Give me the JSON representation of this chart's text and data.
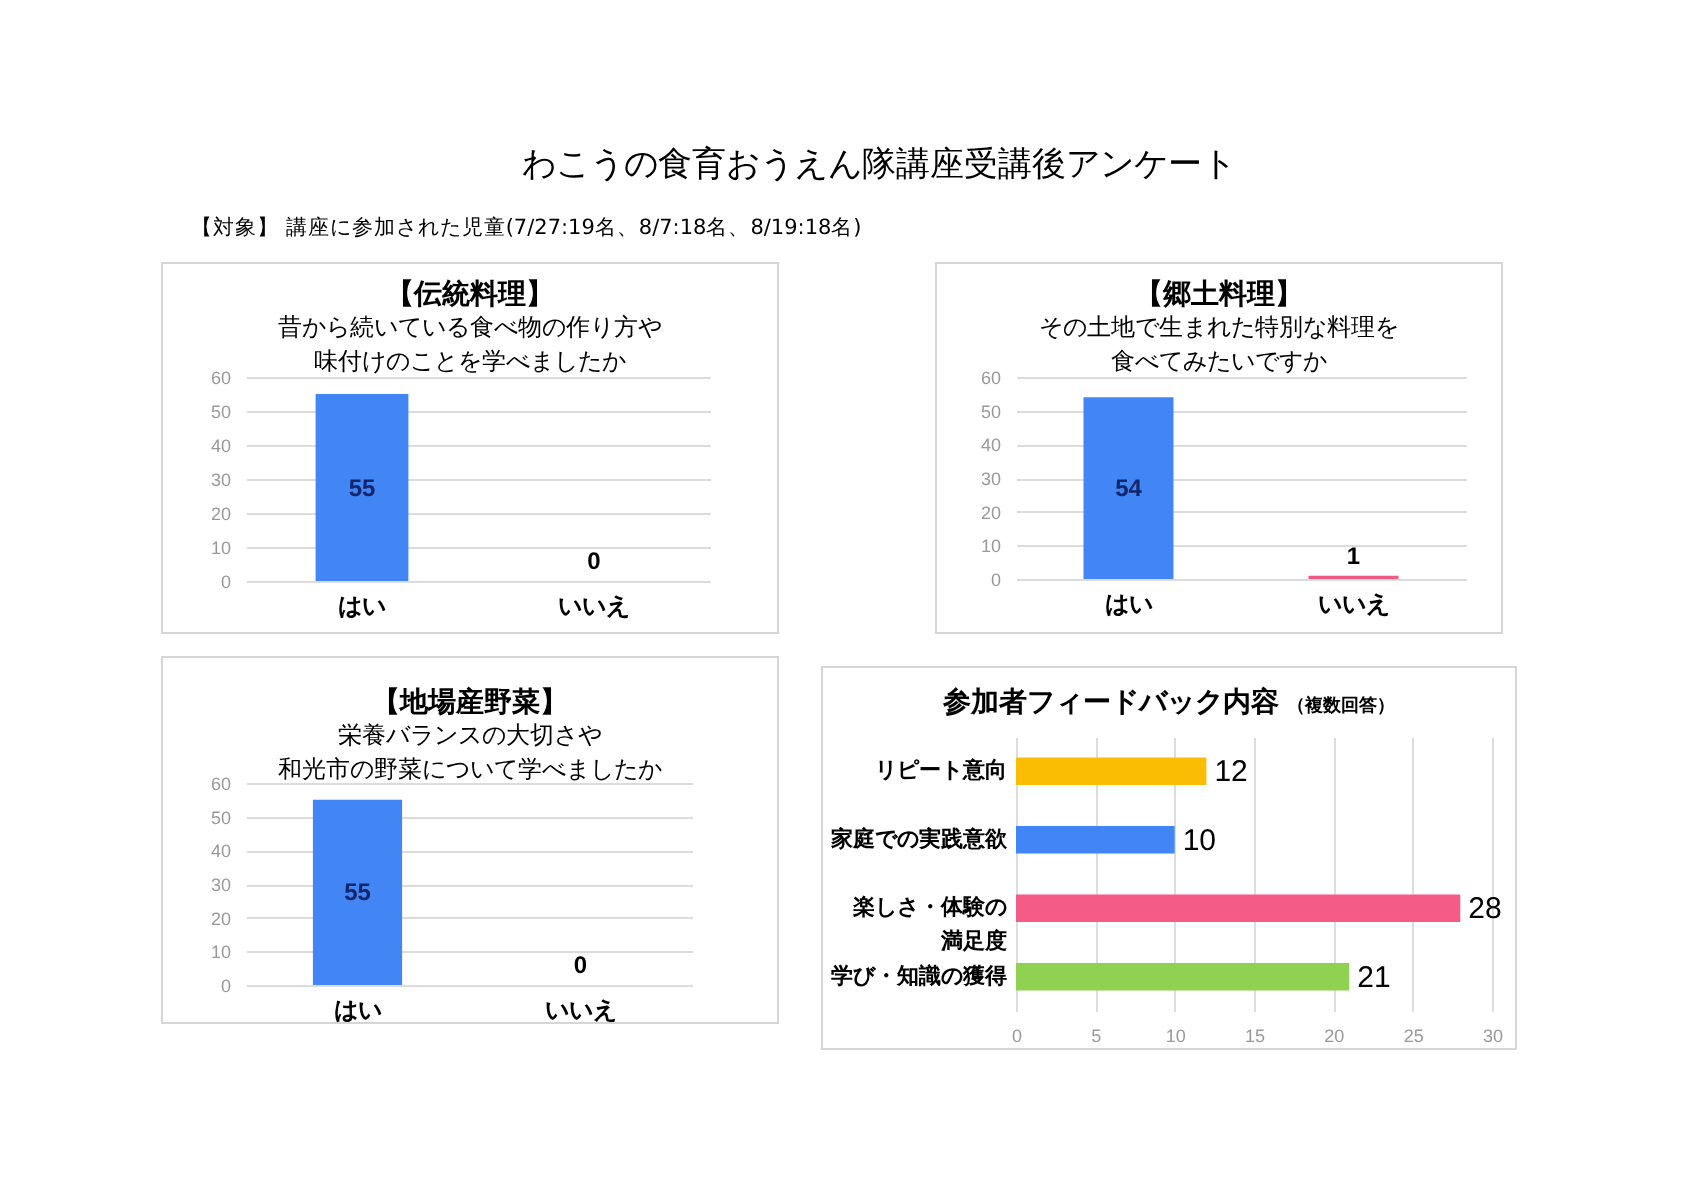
{
  "chart_data": [
    {
      "type": "other",
      "title": "わこうの食育おうえん隊講座受講後アンケート",
      "subtitle": "【対象】 講座に参加された児童(7/27:19名、8/7:18名、8/19:18名)"
    },
    {
      "type": "bar",
      "title": "【伝統料理】",
      "subtitle": "昔から続いている食べ物の作り方や味付けのことを学べましたか",
      "categories": [
        "はい",
        "いいえ"
      ],
      "values": [
        55,
        0
      ],
      "colors": [
        "#4285f4",
        "#ef5a84"
      ],
      "ylim": [
        0,
        60
      ],
      "yticks": [
        0,
        10,
        20,
        30,
        40,
        50,
        60
      ],
      "grid": "y",
      "data_labels": true
    },
    {
      "type": "bar",
      "title": "【郷土料理】",
      "subtitle": "その土地で生まれた特別な料理を食べてみたいですか",
      "categories": [
        "はい",
        "いいえ"
      ],
      "values": [
        54,
        1
      ],
      "colors": [
        "#4285f4",
        "#ef5a84"
      ],
      "ylim": [
        0,
        60
      ],
      "yticks": [
        0,
        10,
        20,
        30,
        40,
        50,
        60
      ],
      "grid": "y",
      "data_labels": true
    },
    {
      "type": "bar",
      "title": "【地場産野菜】",
      "subtitle": "栄養バランスの大切さや和光市の野菜について学べましたか",
      "categories": [
        "はい",
        "いいえ"
      ],
      "values": [
        55,
        0
      ],
      "colors": [
        "#4285f4",
        "#ef5a84"
      ],
      "ylim": [
        0,
        60
      ],
      "yticks": [
        0,
        10,
        20,
        30,
        40,
        50,
        60
      ],
      "grid": "y",
      "data_labels": true
    },
    {
      "type": "bar",
      "orientation": "horizontal",
      "title": "参加者フィードバック内容",
      "subtitle": "（複数回答）",
      "categories": [
        "リピート意向",
        "家庭での実践意欲",
        "楽しさ・体験の満足度",
        "学び・知識の獲得"
      ],
      "values": [
        12,
        10,
        28,
        21
      ],
      "colors": [
        "#fbbc04",
        "#4285f4",
        "#f45b85",
        "#8fd150"
      ],
      "xlim": [
        0,
        30
      ],
      "xticks": [
        0,
        5,
        10,
        15,
        20,
        25,
        30
      ],
      "grid": "x",
      "data_labels": true
    }
  ]
}
